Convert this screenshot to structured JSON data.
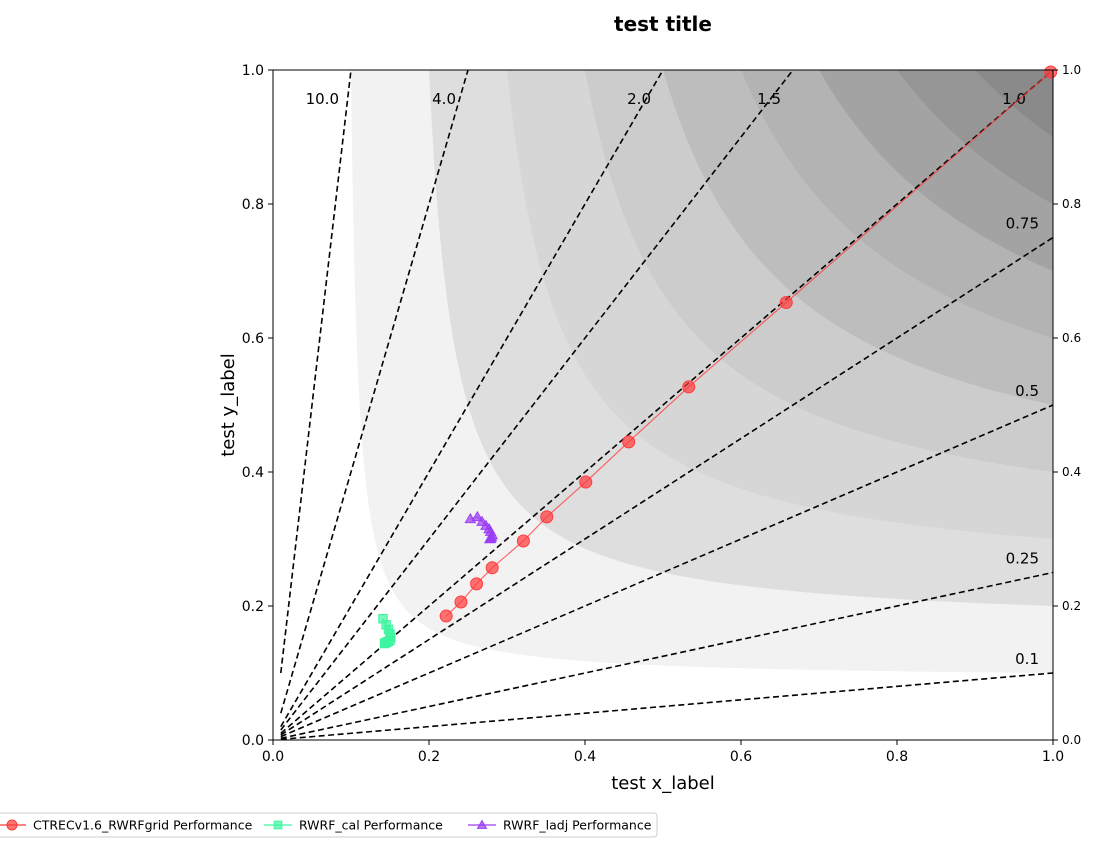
{
  "chart_data": {
    "type": "scatter",
    "title": "test title",
    "xlabel": "test x_label",
    "ylabel": "test y_label",
    "xlim": [
      0.0,
      1.0
    ],
    "ylim": [
      0.0,
      1.0
    ],
    "xticks": [
      "0.0",
      "0.2",
      "0.4",
      "0.6",
      "0.8",
      "1.0"
    ],
    "yticks": [
      "0.0",
      "0.2",
      "0.4",
      "0.6",
      "0.8",
      "1.0"
    ],
    "grid": false,
    "legend_placement": "bottom",
    "csi_levels": [
      0.1,
      0.2,
      0.3,
      0.4,
      0.5,
      0.6,
      0.7,
      0.8,
      0.9
    ],
    "csi_fill_colors": [
      "#ffffff",
      "#f2f2f2",
      "#dedede",
      "#d6d6d6",
      "#cccccc",
      "#bdbdbd",
      "#b3b3b3",
      "#a3a3a3",
      "#969696",
      "#8a8a8a"
    ],
    "bias_lines": [
      {
        "value": 10.0,
        "label": "10.0"
      },
      {
        "value": 4.0,
        "label": "4.0"
      },
      {
        "value": 2.0,
        "label": "2.0"
      },
      {
        "value": 1.5,
        "label": "1.5"
      },
      {
        "value": 1.0,
        "label": "1.0"
      },
      {
        "value": 0.75,
        "label": "0.75"
      },
      {
        "value": 0.5,
        "label": "0.5"
      },
      {
        "value": 0.25,
        "label": "0.25"
      },
      {
        "value": 0.1,
        "label": "0.1"
      }
    ],
    "series": [
      {
        "name": "CTRECv1.6_RWRFgrid Performance",
        "color": "#ff3b3b",
        "marker": "circle",
        "connect": true,
        "x": [
          0.222,
          0.241,
          0.261,
          0.281,
          0.321,
          0.351,
          0.401,
          0.456,
          0.533,
          0.658,
          0.997
        ],
        "y": [
          0.185,
          0.206,
          0.233,
          0.257,
          0.297,
          0.333,
          0.385,
          0.445,
          0.527,
          0.653,
          0.997
        ]
      },
      {
        "name": "RWRF_cal Performance",
        "color": "#3df5a0",
        "marker": "square",
        "connect": true,
        "x": [
          0.141,
          0.145,
          0.148,
          0.15,
          0.151,
          0.15,
          0.148,
          0.146,
          0.144,
          0.143
        ],
        "y": [
          0.181,
          0.172,
          0.165,
          0.158,
          0.153,
          0.149,
          0.147,
          0.146,
          0.145,
          0.144
        ]
      },
      {
        "name": "RWRF_ladj Performance",
        "color": "#9b3df5",
        "marker": "triangle",
        "connect": true,
        "x": [
          0.253,
          0.262,
          0.268,
          0.273,
          0.277,
          0.279,
          0.281,
          0.28,
          0.279,
          0.278
        ],
        "y": [
          0.33,
          0.333,
          0.326,
          0.32,
          0.315,
          0.311,
          0.306,
          0.303,
          0.301,
          0.3
        ]
      }
    ]
  }
}
